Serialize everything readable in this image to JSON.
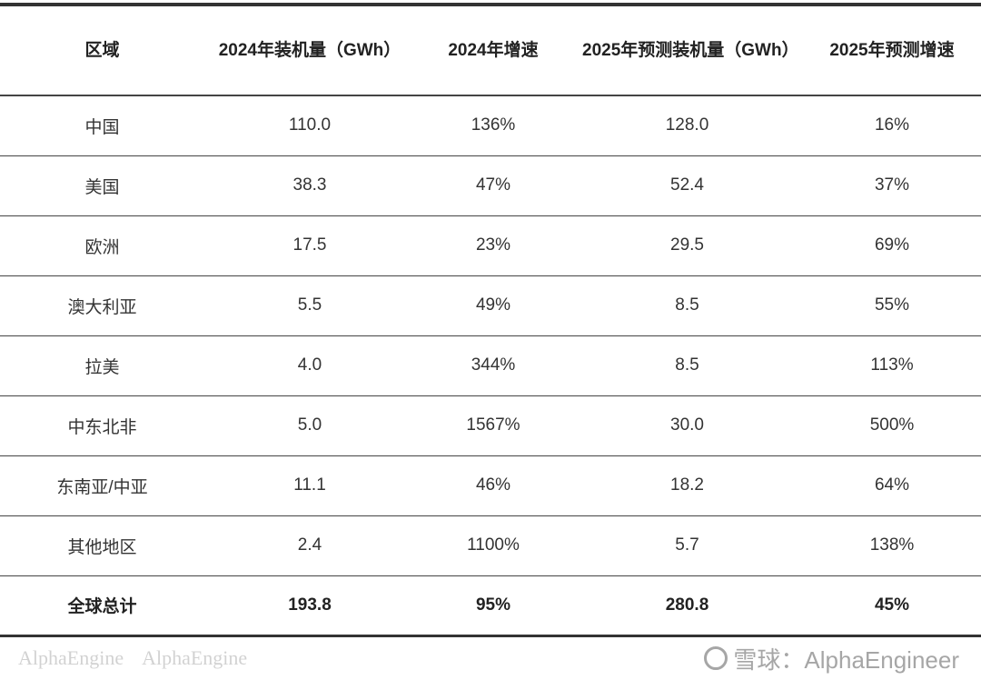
{
  "table": {
    "headers": [
      "区域",
      "2024年装机量（GWh）",
      "2024年增速",
      "2025年预测装机量（GWh）",
      "2025年预测增速"
    ],
    "rows": [
      [
        "中国",
        "110.0",
        "136%",
        "128.0",
        "16%"
      ],
      [
        "美国",
        "38.3",
        "47%",
        "52.4",
        "37%"
      ],
      [
        "欧洲",
        "17.5",
        "23%",
        "29.5",
        "69%"
      ],
      [
        "澳大利亚",
        "5.5",
        "49%",
        "8.5",
        "55%"
      ],
      [
        "拉美",
        "4.0",
        "344%",
        "8.5",
        "113%"
      ],
      [
        "中东北非",
        "5.0",
        "1567%",
        "30.0",
        "500%"
      ],
      [
        "东南亚/中亚",
        "11.1",
        "46%",
        "18.2",
        "64%"
      ],
      [
        "其他地区",
        "2.4",
        "1100%",
        "5.7",
        "138%"
      ]
    ],
    "total": [
      "全球总计",
      "193.8",
      "95%",
      "280.8",
      "45%"
    ]
  },
  "watermarks": {
    "background": "AlphaEngine",
    "source": "雪球：AlphaEngineer"
  }
}
